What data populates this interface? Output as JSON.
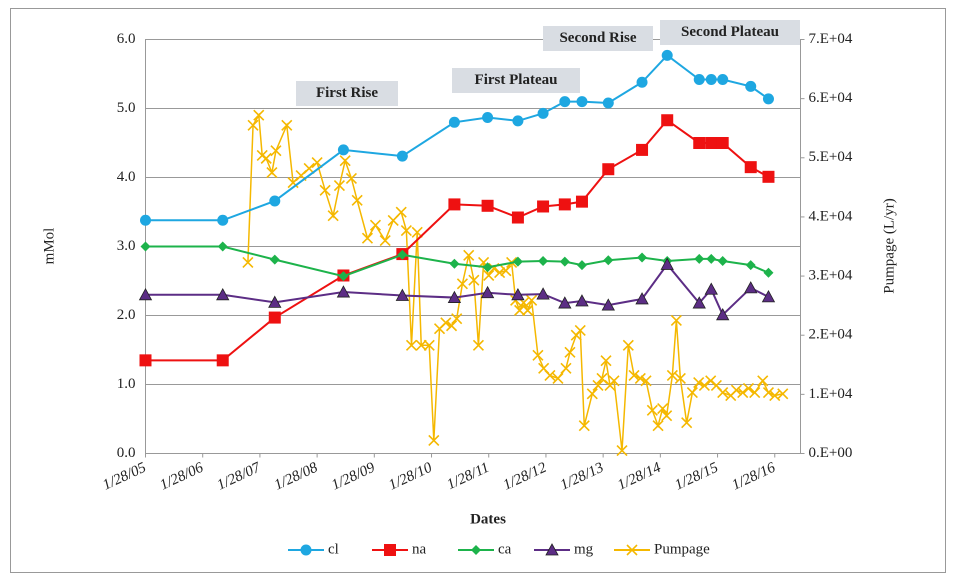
{
  "chart_data": {
    "type": "line",
    "xlabel": "Dates",
    "ylabel": "mMol",
    "y2label": "Pumpage (L/yr)",
    "annotations": [
      "First Rise",
      "First Plateau",
      "Second Rise",
      "Second Plateau"
    ],
    "xlim": [
      2005,
      2016.45
    ],
    "xticks": [
      {
        "value": 2005,
        "label": "1/28/05"
      },
      {
        "value": 2006,
        "label": "1/28/06"
      },
      {
        "value": 2007,
        "label": "1/28/07"
      },
      {
        "value": 2008,
        "label": "1/28/08"
      },
      {
        "value": 2009,
        "label": "1/28/09"
      },
      {
        "value": 2010,
        "label": "1/28/10"
      },
      {
        "value": 2011,
        "label": "1/28/11"
      },
      {
        "value": 2012,
        "label": "1/28/12"
      },
      {
        "value": 2013,
        "label": "1/28/13"
      },
      {
        "value": 2014,
        "label": "1/28/14"
      },
      {
        "value": 2015,
        "label": "1/28/15"
      },
      {
        "value": 2016,
        "label": "1/28/16"
      }
    ],
    "ylim": [
      0,
      6
    ],
    "yticks": [
      {
        "value": 0,
        "label": "0.0"
      },
      {
        "value": 1,
        "label": "1.0"
      },
      {
        "value": 2,
        "label": "2.0"
      },
      {
        "value": 3,
        "label": "3.0"
      },
      {
        "value": 4,
        "label": "4.0"
      },
      {
        "value": 5,
        "label": "5.0"
      },
      {
        "value": 6,
        "label": "6.0"
      }
    ],
    "y2lim": [
      0,
      70000
    ],
    "y2ticks": [
      {
        "value": 0,
        "label": "0.E+00"
      },
      {
        "value": 10000,
        "label": "1.E+04"
      },
      {
        "value": 20000,
        "label": "2.E+04"
      },
      {
        "value": 30000,
        "label": "3.E+04"
      },
      {
        "value": 40000,
        "label": "4.E+04"
      },
      {
        "value": 50000,
        "label": "5.E+04"
      },
      {
        "value": 60000,
        "label": "6.E+04"
      },
      {
        "value": 70000,
        "label": "7.E+04"
      }
    ],
    "grid": true,
    "series": [
      {
        "name": "cl",
        "color": "#1ea7e1",
        "marker": "circle",
        "x": [
          2005.0,
          2006.35,
          2007.26,
          2008.46,
          2009.49,
          2010.4,
          2010.98,
          2011.51,
          2011.95,
          2012.33,
          2012.63,
          2013.09,
          2013.68,
          2014.12,
          2014.68,
          2014.89,
          2015.09,
          2015.58,
          2015.89
        ],
        "values": [
          3.38,
          3.38,
          3.66,
          4.4,
          4.31,
          4.8,
          4.87,
          4.82,
          4.93,
          5.1,
          5.1,
          5.08,
          5.38,
          5.77,
          5.42,
          5.42,
          5.42,
          5.32,
          5.14
        ]
      },
      {
        "name": "na",
        "color": "#ee1111",
        "marker": "square",
        "x": [
          2005.0,
          2006.35,
          2007.26,
          2008.46,
          2009.49,
          2010.4,
          2010.98,
          2011.51,
          2011.95,
          2012.33,
          2012.63,
          2013.09,
          2013.68,
          2014.12,
          2014.68,
          2014.89,
          2015.09,
          2015.58,
          2015.89
        ],
        "values": [
          1.35,
          1.35,
          1.97,
          2.58,
          2.89,
          3.61,
          3.59,
          3.42,
          3.58,
          3.61,
          3.65,
          4.12,
          4.4,
          4.83,
          4.5,
          4.5,
          4.5,
          4.15,
          4.01
        ]
      },
      {
        "name": "ca",
        "color": "#1db34b",
        "marker": "diamond",
        "x": [
          2005.0,
          2006.35,
          2007.26,
          2008.46,
          2009.49,
          2010.4,
          2010.98,
          2011.51,
          2011.95,
          2012.33,
          2012.63,
          2013.09,
          2013.68,
          2014.12,
          2014.68,
          2014.89,
          2015.09,
          2015.58,
          2015.89
        ],
        "values": [
          3.0,
          3.0,
          2.81,
          2.57,
          2.88,
          2.75,
          2.7,
          2.78,
          2.79,
          2.78,
          2.73,
          2.8,
          2.84,
          2.79,
          2.82,
          2.82,
          2.79,
          2.73,
          2.62
        ]
      },
      {
        "name": "mg",
        "color": "#5c2d85",
        "marker": "triangle",
        "x": [
          2005.0,
          2006.35,
          2007.26,
          2008.46,
          2009.49,
          2010.4,
          2010.98,
          2011.51,
          2011.95,
          2012.33,
          2012.63,
          2013.09,
          2013.68,
          2014.12,
          2014.68,
          2014.89,
          2015.09,
          2015.58,
          2015.89
        ],
        "values": [
          2.3,
          2.3,
          2.19,
          2.34,
          2.29,
          2.26,
          2.33,
          2.3,
          2.31,
          2.18,
          2.21,
          2.15,
          2.24,
          2.74,
          2.18,
          2.38,
          2.01,
          2.4,
          2.27
        ]
      },
      {
        "name": "Pumpage",
        "color": "#f5b800",
        "marker": "x",
        "axis": "y2",
        "x": [
          2006.79,
          2006.88,
          2006.98,
          2007.04,
          2007.11,
          2007.21,
          2007.28,
          2007.47,
          2007.58,
          2007.72,
          2007.86,
          2008.0,
          2008.14,
          2008.28,
          2008.39,
          2008.49,
          2008.6,
          2008.7,
          2008.88,
          2009.02,
          2009.19,
          2009.33,
          2009.47,
          2009.56,
          2009.65,
          2009.75,
          2009.82,
          2009.96,
          2010.04,
          2010.14,
          2010.25,
          2010.35,
          2010.44,
          2010.54,
          2010.65,
          2010.74,
          2010.82,
          2010.91,
          2011.0,
          2011.09,
          2011.19,
          2011.3,
          2011.4,
          2011.47,
          2011.54,
          2011.61,
          2011.68,
          2011.75,
          2011.86,
          2011.96,
          2012.07,
          2012.21,
          2012.35,
          2012.42,
          2012.53,
          2012.6,
          2012.67,
          2012.81,
          2012.91,
          2012.98,
          2013.05,
          2013.12,
          2013.19,
          2013.33,
          2013.44,
          2013.54,
          2013.65,
          2013.75,
          2013.86,
          2013.96,
          2014.04,
          2014.11,
          2014.21,
          2014.28,
          2014.35,
          2014.46,
          2014.56,
          2014.67,
          2014.77,
          2014.88,
          2014.98,
          2015.09,
          2015.23,
          2015.33,
          2015.44,
          2015.54,
          2015.65,
          2015.79,
          2015.89,
          2016.0,
          2016.14
        ],
        "values": [
          32300,
          55500,
          57200,
          50400,
          49900,
          47500,
          51200,
          55500,
          45800,
          47000,
          48200,
          49200,
          44500,
          40200,
          45300,
          49500,
          46500,
          42800,
          36400,
          38600,
          36000,
          39400,
          40800,
          37700,
          18300,
          37400,
          18300,
          18300,
          2200,
          21100,
          22100,
          21600,
          22800,
          28700,
          33500,
          29300,
          18300,
          32300,
          30100,
          31300,
          30600,
          30900,
          32300,
          25900,
          24200,
          25500,
          24200,
          25900,
          16600,
          14400,
          13200,
          12700,
          14400,
          17100,
          20000,
          20800,
          4700,
          10100,
          11500,
          12700,
          15700,
          11500,
          12300,
          500,
          18300,
          13200,
          12700,
          12300,
          7300,
          4700,
          7600,
          6400,
          13200,
          22500,
          12700,
          5200,
          10300,
          12000,
          11500,
          12300,
          11500,
          10300,
          9800,
          10700,
          10300,
          11000,
          10300,
          12300,
          10300,
          9800,
          10100
        ]
      }
    ]
  }
}
